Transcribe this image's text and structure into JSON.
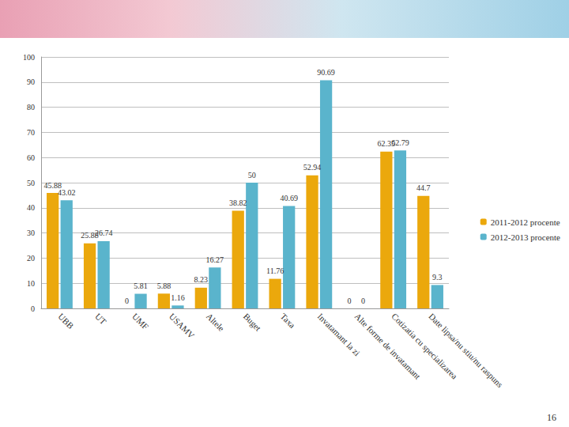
{
  "chart_data": {
    "type": "bar",
    "categories": [
      "UBB",
      "UT",
      "UMF",
      "USAMV",
      "Altele",
      "Buget",
      "Taxa",
      "Invatamant la zi",
      "Alte forme de invatamant",
      "Cotizatia cu specializarea",
      "Date lipsa/nu stiu/nu raspuns"
    ],
    "series": [
      {
        "name": "2011-2012 procente",
        "color": "#eba80c",
        "values": [
          45.88,
          25.88,
          0,
          5.88,
          8.23,
          38.82,
          11.76,
          52.94,
          0,
          62.35,
          44.7
        ]
      },
      {
        "name": "2012-2013 procente",
        "color": "#5ab4cc",
        "values": [
          43.02,
          26.74,
          5.81,
          1.16,
          16.27,
          50,
          40.69,
          90.69,
          0,
          62.79,
          9.3
        ]
      }
    ],
    "ylim": [
      0,
      100
    ],
    "yticks": [
      0,
      10,
      20,
      30,
      40,
      50,
      60,
      70,
      80,
      90,
      100
    ],
    "grid": true,
    "legend": "right",
    "data_labels": true,
    "annotations": [
      "16"
    ]
  }
}
